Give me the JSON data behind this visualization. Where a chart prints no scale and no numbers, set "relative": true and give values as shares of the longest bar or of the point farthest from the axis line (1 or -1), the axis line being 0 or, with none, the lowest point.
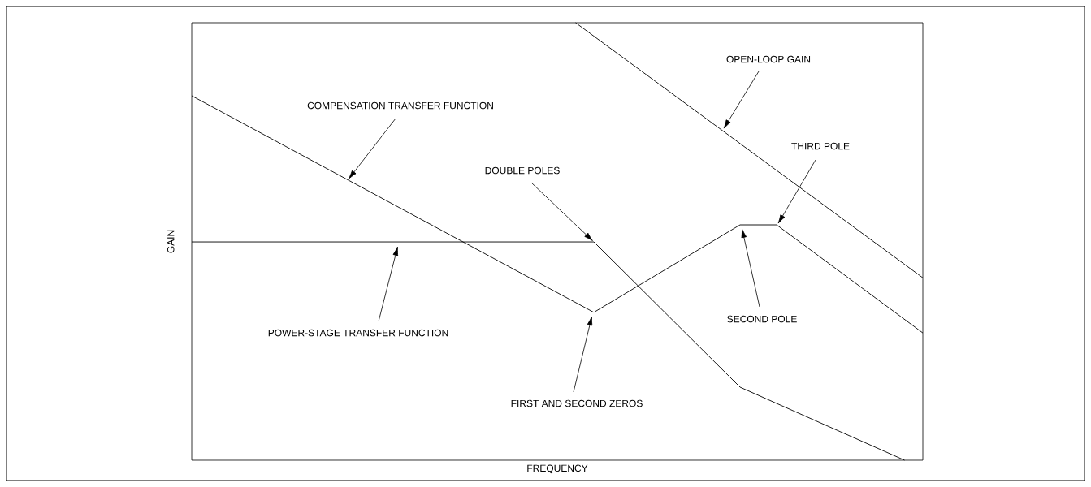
{
  "chart_data": {
    "type": "line",
    "relative": true,
    "xlabel": "FREQUENCY",
    "ylabel": "GAIN",
    "categories": [
      null,
      null,
      null,
      null,
      null,
      null,
      null,
      null,
      null,
      null,
      null,
      null,
      null,
      null,
      null,
      null,
      null,
      null,
      null,
      null,
      null,
      null,
      null,
      null,
      null,
      null,
      null,
      null,
      null,
      null,
      null,
      null,
      null,
      null,
      null,
      null,
      null,
      null,
      null,
      null,
      null
    ],
    "series": [
      {
        "color": "#000000",
        "values": [
          0.499,
          null,
          null,
          null,
          null,
          null,
          null,
          null,
          null,
          null,
          null,
          null,
          null,
          null,
          null,
          null,
          null,
          null,
          null,
          null,
          null,
          null,
          0.499,
          null,
          null,
          null,
          null,
          null,
          null,
          null,
          0.167,
          null,
          null,
          null,
          null,
          null,
          null,
          null,
          null,
          0,
          null
        ]
      },
      {
        "color": "#000000",
        "values": [
          0.833,
          null,
          null,
          null,
          null,
          null,
          null,
          null,
          null,
          null,
          null,
          null,
          null,
          null,
          null,
          null,
          null,
          null,
          null,
          null,
          null,
          null,
          0.338,
          null,
          null,
          null,
          null,
          null,
          null,
          null,
          0.538,
          null,
          0.538,
          null,
          null,
          null,
          null,
          null,
          null,
          null,
          0.291
        ]
      },
      {
        "color": "#000000",
        "values": [
          null,
          null,
          null,
          null,
          null,
          null,
          null,
          null,
          null,
          null,
          null,
          null,
          null,
          null,
          null,
          null,
          null,
          null,
          null,
          null,
          null,
          1.0,
          null,
          null,
          null,
          null,
          null,
          null,
          null,
          null,
          null,
          null,
          null,
          null,
          null,
          null,
          null,
          null,
          null,
          null,
          0.417
        ]
      }
    ],
    "annotations": [
      "OPEN-LOOP GAIN",
      "THIRD POLE",
      "COMPENSATION TRANSFER FUNCTION",
      "DOUBLE POLES",
      "POWER-STAGE TRANSFER FUNCTION",
      "SECOND POLE",
      "FIRST AND SECOND ZEROS"
    ]
  }
}
